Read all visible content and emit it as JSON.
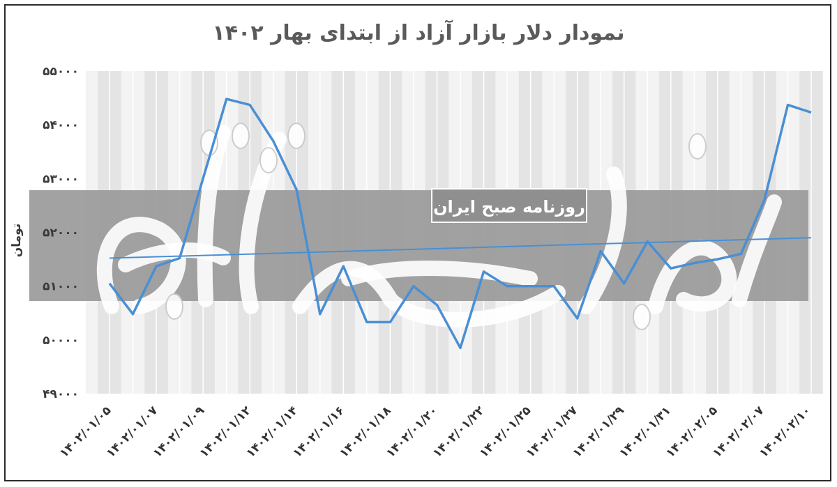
{
  "title": "نمودار دلار بازار آزاد از ابتدای بهار ۱۴۰۲",
  "y_axis_label": "تومان",
  "watermark": {
    "logo_text": "دنیای اقتصاد",
    "tagline": "روزنامه صبح ایران"
  },
  "colors": {
    "line": "#4a8fd4",
    "trend": "#4a8fd4",
    "band": "#9a9a9a",
    "grid_fill": "#eeeeee"
  },
  "chart_data": {
    "type": "line",
    "title": "نمودار دلار بازار آزاد از ابتدای بهار ۱۴۰۲",
    "ylabel": "تومان",
    "xlabel": "",
    "ylim": [
      49000,
      55000
    ],
    "y_ticks": [
      "۴۹۰۰۰",
      "۵۰۰۰۰",
      "۵۱۰۰۰",
      "۵۲۰۰۰",
      "۵۳۰۰۰",
      "۵۴۰۰۰",
      "۵۵۰۰۰"
    ],
    "y_tick_values": [
      49000,
      50000,
      51000,
      52000,
      53000,
      54000,
      55000
    ],
    "x_tick_labels": [
      "۱۴۰۲/۰۱/۰۵",
      "۱۴۰۲/۰۱/۰۷",
      "۱۴۰۲/۰۱/۰۹",
      "۱۴۰۲/۰۱/۱۲",
      "۱۴۰۲/۰۱/۱۴",
      "۱۴۰۲/۰۱/۱۶",
      "۱۴۰۲/۰۱/۱۸",
      "۱۴۰۲/۰۱/۲۰",
      "۱۴۰۲/۰۱/۲۲",
      "۱۴۰۲/۰۱/۲۵",
      "۱۴۰۲/۰۱/۲۷",
      "۱۴۰۲/۰۱/۲۹",
      "۱۴۰۲/۰۱/۳۱",
      "۱۴۰۲/۰۲/۰۵",
      "۱۴۰۲/۰۲/۰۷",
      "۱۴۰۲/۰۲/۱۰"
    ],
    "series": [
      {
        "values": [
          51050,
          50480,
          51370,
          51520,
          53000,
          54480,
          54370,
          53700,
          52790,
          50480,
          51370,
          50330,
          50330,
          51000,
          50650,
          49850,
          51270,
          51000,
          51000,
          51000,
          50400,
          51650,
          51050,
          51830,
          51330,
          51430,
          51500,
          51600,
          52600,
          54370,
          54230
        ]
      }
    ],
    "trendline": {
      "start": 51520,
      "end": 51900
    },
    "grid": true,
    "legend": "none"
  }
}
